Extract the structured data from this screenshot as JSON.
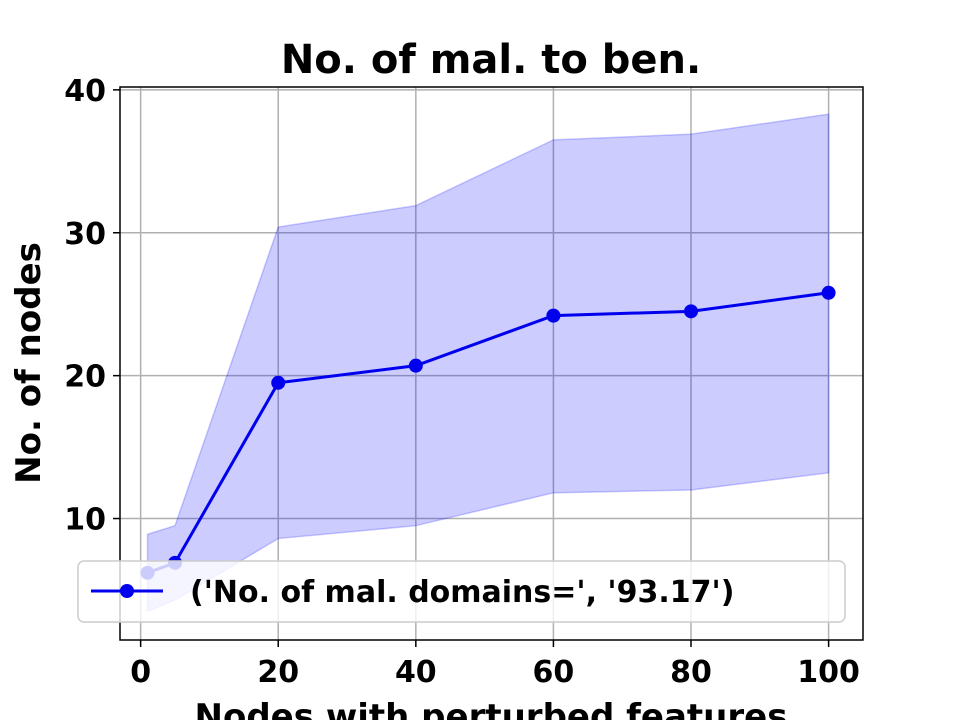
{
  "chart_data": {
    "type": "line",
    "title": "No. of mal. to ben.",
    "xlabel": "Nodes with perturbed features",
    "ylabel": "No. of nodes",
    "xlim": [
      -3,
      105
    ],
    "ylim": [
      1.5,
      40.2
    ],
    "xticks": [
      0,
      20,
      40,
      60,
      80,
      100
    ],
    "yticks": [
      10,
      20,
      30,
      40
    ],
    "grid": true,
    "legend_position": "lower-left",
    "series": [
      {
        "name": "('No. of mal. domains=', '93.17')",
        "color": "#0000ee",
        "x": [
          1,
          5,
          20,
          40,
          60,
          80,
          100
        ],
        "y": [
          6.2,
          6.9,
          19.5,
          20.7,
          24.2,
          24.5,
          25.8
        ],
        "band_upper": [
          8.9,
          9.5,
          30.4,
          31.9,
          36.5,
          36.9,
          38.3
        ],
        "band_lower": [
          3.5,
          4.3,
          8.6,
          9.5,
          11.8,
          12.0,
          13.2
        ],
        "band_color": "#0000ff"
      }
    ]
  }
}
